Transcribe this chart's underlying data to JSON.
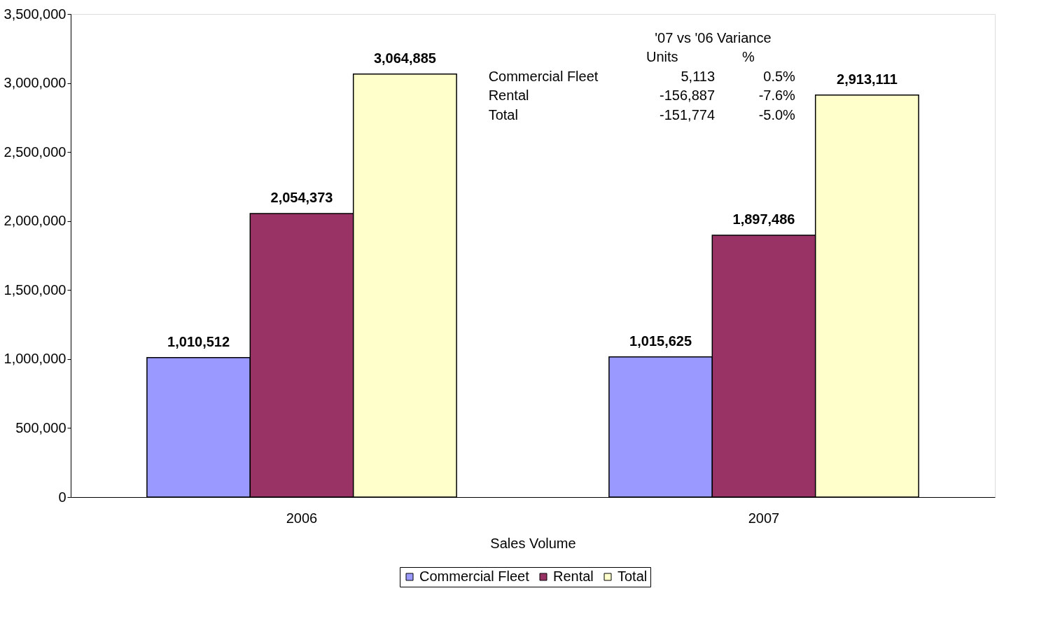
{
  "chart_data": {
    "type": "bar",
    "xlabel": "Sales Volume",
    "categories": [
      "2006",
      "2007"
    ],
    "series": [
      {
        "name": "Commercial Fleet",
        "color": "#9999ff",
        "values": [
          1010512,
          1015625
        ],
        "value_labels": [
          "1,010,512",
          "1,015,625"
        ]
      },
      {
        "name": "Rental",
        "color": "#993366",
        "values": [
          2054373,
          1897486
        ],
        "value_labels": [
          "2,054,373",
          "1,897,486"
        ]
      },
      {
        "name": "Total",
        "color": "#ffffcc",
        "values": [
          3064885,
          2913111
        ],
        "value_labels": [
          "3,064,885",
          "2,913,111"
        ]
      }
    ],
    "ylim": [
      0,
      3500000
    ],
    "yticks": [
      0,
      {
        "value": 500000,
        "label": "500,000"
      },
      {
        "value": 1000000,
        "label": "1,000,000"
      },
      {
        "value": 1500000,
        "label": "1,500,000"
      },
      {
        "value": 2000000,
        "label": "2,000,000"
      },
      {
        "value": 2500000,
        "label": "2,500,000"
      },
      {
        "value": 3000000,
        "label": "3,000,000"
      },
      {
        "value": 3500000,
        "label": "3,500,000"
      }
    ],
    "grid": false,
    "legend": "bottom",
    "annotations": [
      "'07 vs '06 Variance",
      "Units",
      "%",
      "Commercial Fleet",
      "5,113",
      "0.5%",
      "Rental",
      "-156,887",
      "-7.6%",
      "Total",
      "-151,774",
      "-5.0%"
    ]
  }
}
